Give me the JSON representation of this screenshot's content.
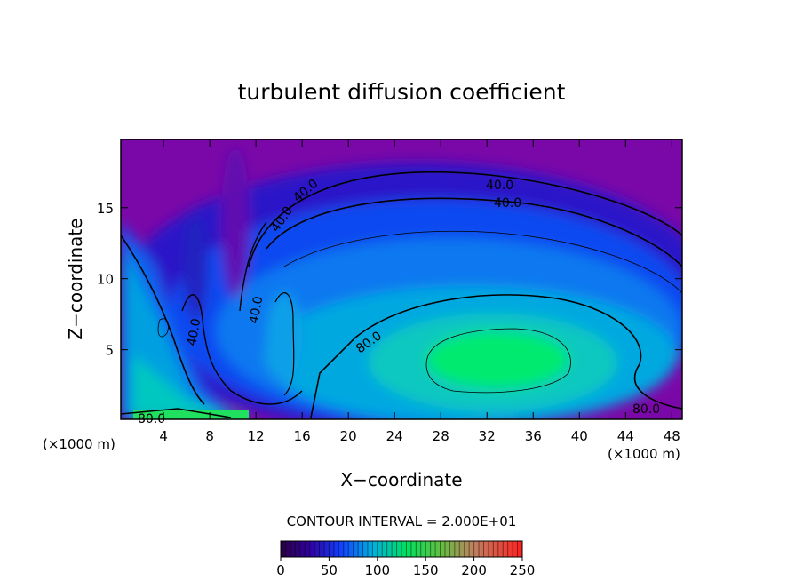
{
  "chart_data": {
    "type": "contour",
    "title": "turbulent diffusion coefficient",
    "xlabel": "X−coordinate",
    "ylabel": "Z−coordinate",
    "x_unit": "(×1000 m)",
    "xlim": [
      0.3,
      48.9
    ],
    "xticks": [
      4,
      8,
      12,
      16,
      20,
      24,
      28,
      32,
      36,
      40,
      44,
      48
    ],
    "ylim": [
      0.1,
      19.8
    ],
    "yticks": [
      5,
      10,
      15
    ],
    "contour_levels": [
      40,
      80
    ],
    "contour_level_labels": [
      "40.0",
      "80.0"
    ],
    "contour_interval_text": "CONTOUR INTERVAL = 2.000E+01",
    "clim": [
      0,
      250
    ],
    "cticks": [
      0,
      50,
      100,
      150,
      200,
      250
    ]
  }
}
